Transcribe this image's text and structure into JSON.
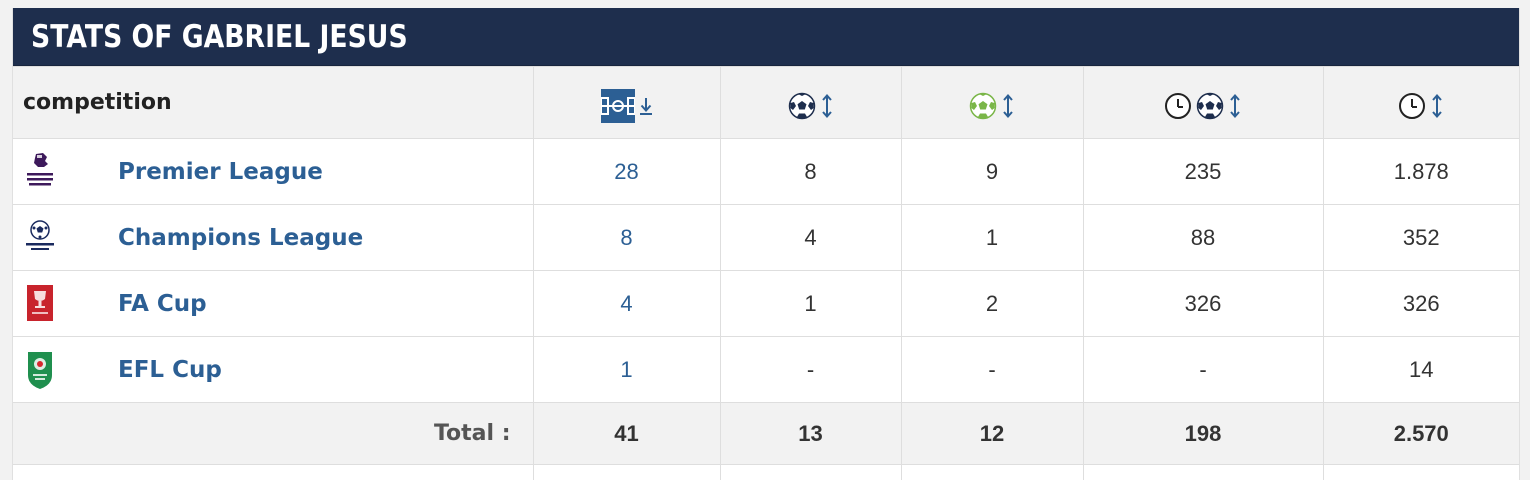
{
  "widget": {
    "title": "STATS OF GABRIEL JESUS"
  },
  "table": {
    "competition_header": "competition",
    "columns": [
      {
        "key": "appearances",
        "icon": "pitch-icon",
        "sort": "desc"
      },
      {
        "key": "goals",
        "icon": "ball-icon",
        "sort": "both"
      },
      {
        "key": "assists",
        "icon": "assist-ball-icon",
        "sort": "both"
      },
      {
        "key": "minutes_per_goal",
        "icon": "clock-ball-icon",
        "sort": "both"
      },
      {
        "key": "minutes",
        "icon": "clock-icon",
        "sort": "both"
      }
    ],
    "rows": [
      {
        "competition": "Premier League",
        "logo": "premier-league-logo",
        "appearances": "28",
        "goals": "8",
        "assists": "9",
        "minutes_per_goal": "235",
        "minutes": "1.878"
      },
      {
        "competition": "Champions League",
        "logo": "champions-league-logo",
        "appearances": "8",
        "goals": "4",
        "assists": "1",
        "minutes_per_goal": "88",
        "minutes": "352"
      },
      {
        "competition": "FA Cup",
        "logo": "fa-cup-logo",
        "appearances": "4",
        "goals": "1",
        "assists": "2",
        "minutes_per_goal": "326",
        "minutes": "326"
      },
      {
        "competition": "EFL Cup",
        "logo": "efl-cup-logo",
        "appearances": "1",
        "goals": "-",
        "assists": "-",
        "minutes_per_goal": "-",
        "minutes": "14"
      }
    ],
    "total": {
      "label": "Total :",
      "appearances": "41",
      "goals": "13",
      "assists": "12",
      "minutes_per_goal": "198",
      "minutes": "2.570"
    }
  },
  "colors": {
    "title_bar": "#1e2e4d",
    "link": "#2c5f94",
    "header_bg": "#f2f2f2",
    "assist_green": "#7ab648"
  }
}
